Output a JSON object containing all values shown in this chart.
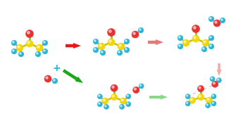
{
  "bg_color": "#ffffff",
  "C": "#f2d600",
  "O": "#e83232",
  "H": "#28b4d8",
  "bond_co": "#78cc3c",
  "bond_cc": "#c8c000",
  "bond_ch": "#999999",
  "arrow_red": "#e81818",
  "arrow_pink_med": "#e87878",
  "arrow_pink_light": "#f0aaaa",
  "arrow_green": "#18a818",
  "arrow_green_light": "#88d888",
  "plus_color": "#28b4d8",
  "figsize": [
    3.35,
    1.89
  ],
  "dpi": 100
}
